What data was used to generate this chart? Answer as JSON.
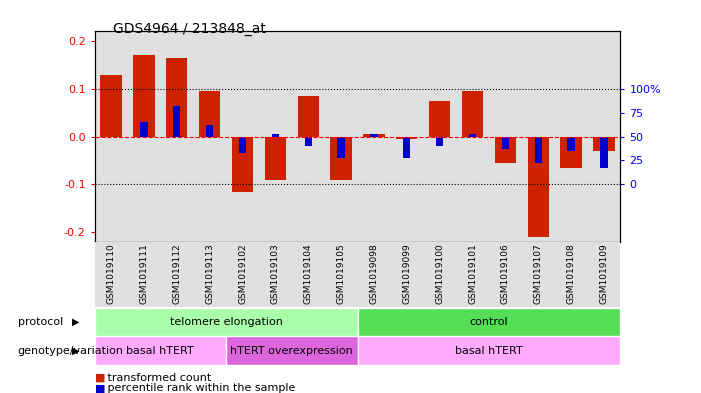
{
  "title": "GDS4964 / 213848_at",
  "samples": [
    "GSM1019110",
    "GSM1019111",
    "GSM1019112",
    "GSM1019113",
    "GSM1019102",
    "GSM1019103",
    "GSM1019104",
    "GSM1019105",
    "GSM1019098",
    "GSM1019099",
    "GSM1019100",
    "GSM1019101",
    "GSM1019106",
    "GSM1019107",
    "GSM1019108",
    "GSM1019109"
  ],
  "red_values": [
    0.128,
    0.17,
    0.165,
    0.095,
    -0.115,
    -0.09,
    0.085,
    -0.09,
    0.005,
    -0.005,
    0.075,
    0.095,
    -0.055,
    -0.21,
    -0.065,
    -0.03
  ],
  "blue_values": [
    0.0,
    0.03,
    0.065,
    0.025,
    -0.035,
    0.005,
    -0.02,
    -0.045,
    0.005,
    -0.045,
    -0.02,
    0.005,
    -0.025,
    -0.055,
    -0.03,
    -0.065
  ],
  "protocol_groups": [
    {
      "label": "telomere elongation",
      "start": 0,
      "end": 8,
      "color": "#aaffaa"
    },
    {
      "label": "control",
      "start": 8,
      "end": 16,
      "color": "#55dd55"
    }
  ],
  "genotype_groups": [
    {
      "label": "basal hTERT",
      "start": 0,
      "end": 4,
      "color": "#ffaaff"
    },
    {
      "label": "hTERT overexpression",
      "start": 4,
      "end": 8,
      "color": "#dd66dd"
    },
    {
      "label": "basal hTERT",
      "start": 8,
      "end": 16,
      "color": "#ffaaff"
    }
  ],
  "ylim": [
    -0.22,
    0.22
  ],
  "yticks_left": [
    -0.2,
    -0.1,
    0.0,
    0.1,
    0.2
  ],
  "yticks_right_vals": [
    -0.1,
    -0.05,
    0.0,
    0.05,
    0.1
  ],
  "yticks_right_labels": [
    "0",
    "25",
    "50",
    "75",
    "100%"
  ],
  "red_color": "#cc2200",
  "blue_color": "#0000cc",
  "bar_bg_color": "#e0e0e0"
}
